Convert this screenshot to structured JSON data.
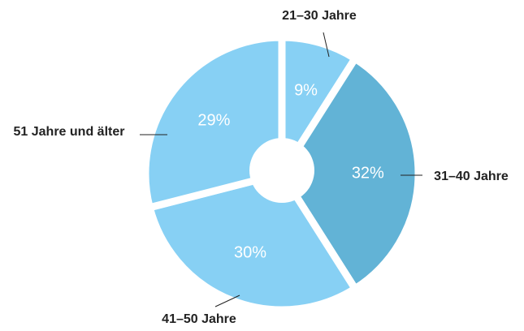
{
  "chart_data": {
    "type": "pie",
    "categories": [
      "21–30 Jahre",
      "31–40 Jahre",
      "41–50 Jahre",
      "51 Jahre und älter"
    ],
    "values": [
      9,
      32,
      30,
      29
    ],
    "value_labels": [
      "9%",
      "32%",
      "30%",
      "29%"
    ],
    "colors": [
      "#87d0f4",
      "#62b3d6",
      "#87d0f4",
      "#87d0f4"
    ]
  }
}
